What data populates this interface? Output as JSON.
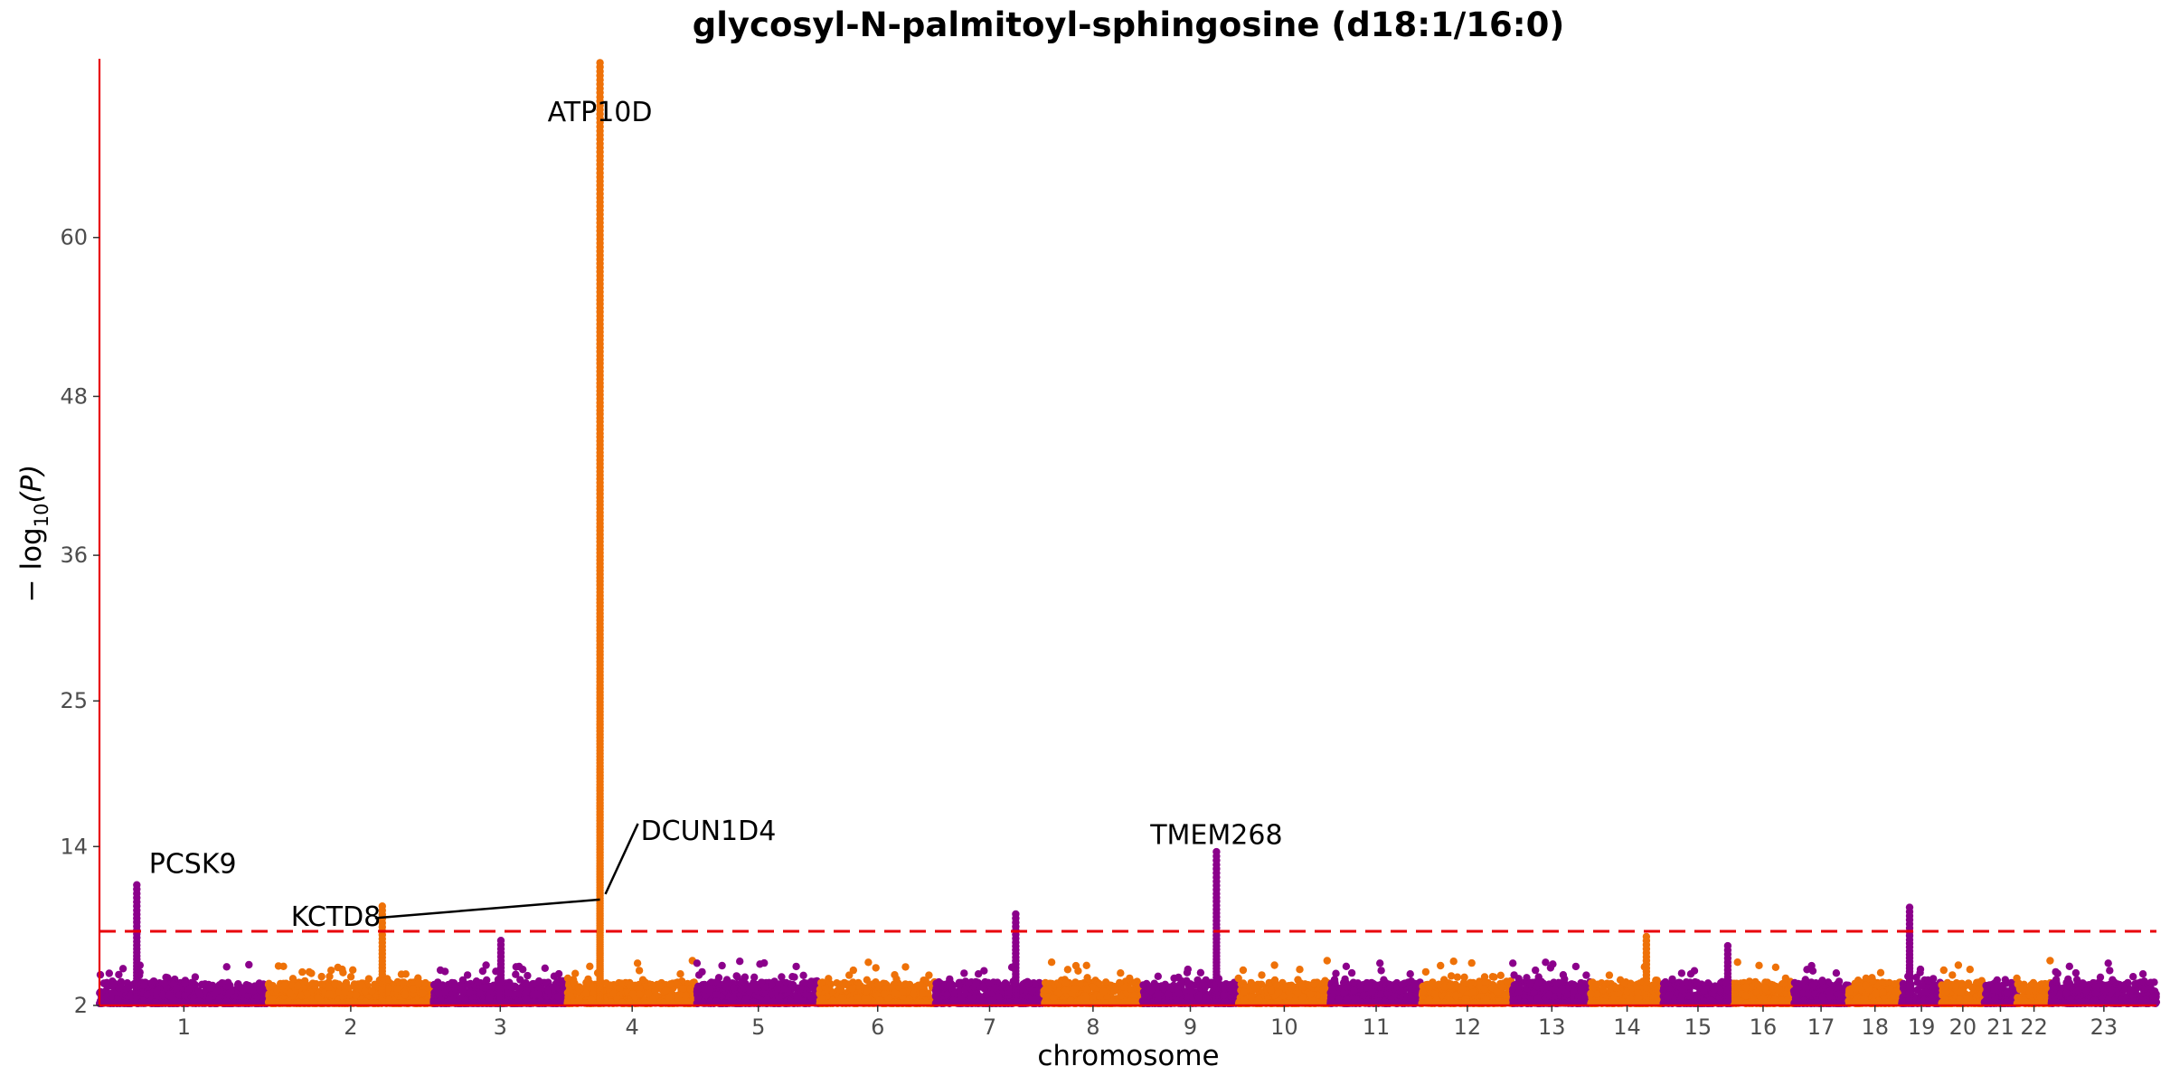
{
  "colors": {
    "chrom_a": "#8B008B",
    "chrom_b": "#EE7108",
    "axis": "#E8000B",
    "threshold": "#E8000B"
  },
  "chart_data": {
    "type": "scatter",
    "subtype": "manhattan",
    "title": "glycosyl-N-palmitoyl-sphingosine (d18:1/16:0)",
    "xlabel": "chromosome",
    "ylabel_main": "− log",
    "ylabel_sub": "10",
    "ylabel_tail": "(P)",
    "ylim": [
      2,
      73.5
    ],
    "y_ticks": [
      2,
      14,
      25,
      36,
      48,
      60
    ],
    "threshold": 7.6,
    "threshold_style": "dashed",
    "grid": false,
    "chromosomes": [
      {
        "label": "1",
        "length": 249
      },
      {
        "label": "2",
        "length": 243
      },
      {
        "label": "3",
        "length": 198
      },
      {
        "label": "4",
        "length": 191
      },
      {
        "label": "5",
        "length": 181
      },
      {
        "label": "6",
        "length": 171
      },
      {
        "label": "7",
        "length": 159
      },
      {
        "label": "8",
        "length": 146
      },
      {
        "label": "9",
        "length": 141
      },
      {
        "label": "10",
        "length": 136
      },
      {
        "label": "11",
        "length": 135
      },
      {
        "label": "12",
        "length": 134
      },
      {
        "label": "13",
        "length": 115
      },
      {
        "label": "14",
        "length": 107
      },
      {
        "label": "15",
        "length": 102
      },
      {
        "label": "16",
        "length": 90
      },
      {
        "label": "17",
        "length": 81
      },
      {
        "label": "18",
        "length": 78
      },
      {
        "label": "19",
        "length": 59
      },
      {
        "label": "20",
        "length": 63
      },
      {
        "label": "21",
        "length": 48
      },
      {
        "label": "22",
        "length": 51
      },
      {
        "label": "23",
        "length": 155
      }
    ],
    "peaks": [
      {
        "chrom": "1",
        "pos": 55,
        "max": 11.1
      },
      {
        "chrom": "2",
        "pos": 168,
        "max": 9.5
      },
      {
        "chrom": "3",
        "pos": 100,
        "max": 6.9
      },
      {
        "chrom": "4",
        "pos": 48,
        "max": 73.2
      },
      {
        "chrom": "7",
        "pos": 118,
        "max": 8.9
      },
      {
        "chrom": "9",
        "pos": 109,
        "max": 13.6
      },
      {
        "chrom": "14",
        "pos": 82,
        "max": 7.2
      },
      {
        "chrom": "15",
        "pos": 95,
        "max": 6.5
      },
      {
        "chrom": "19",
        "pos": 12,
        "max": 9.4
      }
    ],
    "annotations": [
      {
        "label": "PCSK9",
        "chrom": "1",
        "pos": 55,
        "y": 11.1,
        "anchor": "start",
        "dx_bp": 18,
        "text_y": 12.0
      },
      {
        "label": "KCTD8",
        "chrom": "2",
        "pos": 168,
        "y": 8.6,
        "anchor": "end",
        "dx_bp": -2,
        "text_y": 8.0
      },
      {
        "label": "ATP10D",
        "chrom": "4",
        "pos": 48,
        "y": 73.2,
        "anchor": "middle",
        "dx_bp": 0,
        "text_y": 68.8
      },
      {
        "label": "DCUN1D4",
        "chrom": "4",
        "pos": 48,
        "y": 10.0,
        "anchor": "start",
        "dx_bp": 60,
        "text_y": 14.5
      },
      {
        "label": "TMEM268",
        "chrom": "9",
        "pos": 109,
        "y": 13.6,
        "anchor": "middle",
        "dx_bp": 0,
        "text_y": 14.2
      }
    ]
  }
}
